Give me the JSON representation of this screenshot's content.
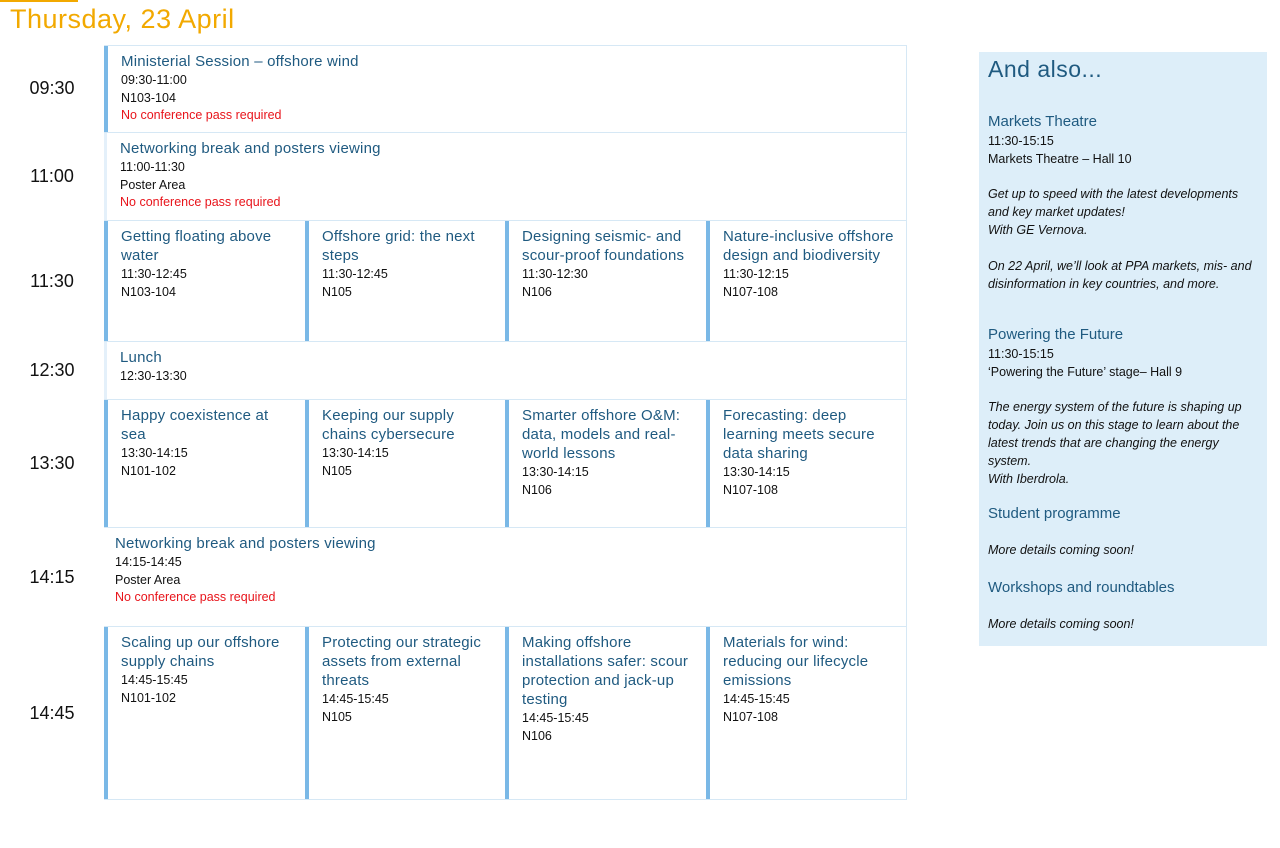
{
  "day_title": "Thursday, 23 April",
  "colors": {
    "accent": "#f2a900",
    "title": "#1f5a80",
    "bar": "#7ab8e6",
    "note": "#e8141b",
    "sidebar_bg": "#ddeef9"
  },
  "rows": [
    {
      "time": "09:30",
      "sessions": [
        {
          "title": "Ministerial Session – offshore wind",
          "time": "09:30-11:00",
          "room": "N103-104",
          "note": "No conference pass required"
        }
      ]
    },
    {
      "time": "11:00",
      "sessions": [
        {
          "title": "Networking break and posters viewing",
          "time": "11:00-11:30",
          "room": "Poster Area",
          "note": "No conference pass required"
        }
      ]
    },
    {
      "time": "11:30",
      "sessions": [
        {
          "title": "Getting floating above water",
          "time": "11:30-12:45",
          "room": "N103-104"
        },
        {
          "title": "Offshore grid: the next steps",
          "time": "11:30-12:45",
          "room": "N105"
        },
        {
          "title": "Designing seismic- and scour-proof foundations",
          "time": "11:30-12:30",
          "room": "N106"
        },
        {
          "title": "Nature-inclusive offshore design and biodiversity",
          "time": "11:30-12:15",
          "room": "N107-108"
        }
      ]
    },
    {
      "time": "12:30",
      "sessions": [
        {
          "title": "Lunch",
          "time": "12:30-13:30"
        }
      ]
    },
    {
      "time": "13:30",
      "sessions": [
        {
          "title": "Happy coexistence at sea",
          "time": "13:30-14:15",
          "room": "N101-102"
        },
        {
          "title": "Keeping our supply chains cybersecure",
          "time": "13:30-14:15",
          "room": "N105"
        },
        {
          "title": "Smarter offshore O&M: data, models and real-world lessons",
          "time": "13:30-14:15",
          "room": "N106"
        },
        {
          "title": "Forecasting: deep learning meets secure data sharing",
          "time": "13:30-14:15",
          "room": "N107-108"
        }
      ]
    },
    {
      "time": "14:15",
      "sessions": [
        {
          "title": "Networking break and posters viewing",
          "time": "14:15-14:45",
          "room": "Poster Area",
          "note": "No conference pass required"
        }
      ]
    },
    {
      "time": "14:45",
      "sessions": [
        {
          "title": "Scaling up our offshore supply chains",
          "time": "14:45-15:45",
          "room": "N101-102"
        },
        {
          "title": "Protecting our strategic assets from external threats",
          "time": "14:45-15:45",
          "room": "N105"
        },
        {
          "title": "Making offshore installations safer: scour protection and jack-up testing",
          "time": "14:45-15:45",
          "room": "N106"
        },
        {
          "title": "Materials for wind: reducing our lifecycle emissions",
          "time": "14:45-15:45",
          "room": "N107-108"
        }
      ]
    }
  ],
  "sidebar": {
    "heading": "And also...",
    "items": [
      {
        "title": "Markets Theatre",
        "time": "11:30-15:15",
        "place": "Markets Theatre – Hall 10",
        "desc": "Get up to speed with the latest developments and key market updates!\nWith GE Vernova.\n\nOn 22 April, we’ll look at PPA markets, mis- and disinformation in key countries, and more."
      },
      {
        "title": "Powering the Future",
        "time": "11:30-15:15",
        "place": "‘Powering the Future’ stage– Hall 9",
        "desc": "The energy system of the future is shaping up today. Join us on this stage to learn about the latest trends that are changing the energy  system.\nWith Iberdrola."
      },
      {
        "title": "Student programme",
        "desc": "More details coming soon!"
      },
      {
        "title": "Workshops and roundtables",
        "desc": "More details coming soon!"
      }
    ]
  }
}
